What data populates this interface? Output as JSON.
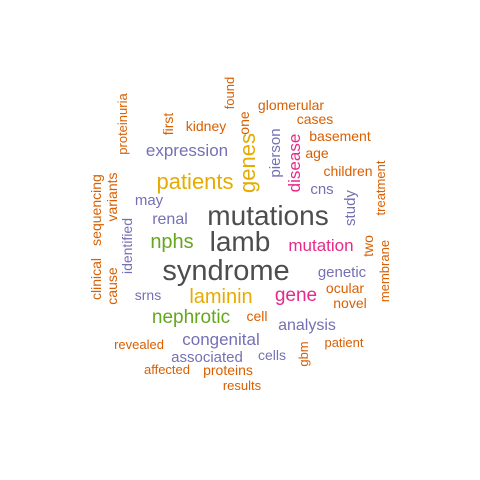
{
  "colors": {
    "grey": "#4d4d4d",
    "orange": "#d95f02",
    "purple": "#7570b3",
    "magenta": "#e7298a",
    "green": "#66a61e",
    "gold": "#e6ab02",
    "background": "#ffffff"
  },
  "words": [
    {
      "text": "syndrome",
      "color": "grey"
    },
    {
      "text": "mutations",
      "color": "grey"
    },
    {
      "text": "lamb",
      "color": "grey"
    },
    {
      "text": "patients",
      "color": "gold"
    },
    {
      "text": "genes",
      "color": "gold"
    },
    {
      "text": "laminin",
      "color": "gold"
    },
    {
      "text": "nphs",
      "color": "green"
    },
    {
      "text": "nephrotic",
      "color": "green"
    },
    {
      "text": "gene",
      "color": "magenta"
    },
    {
      "text": "mutation",
      "color": "magenta"
    },
    {
      "text": "disease",
      "color": "magenta"
    },
    {
      "text": "expression",
      "color": "purple"
    },
    {
      "text": "renal",
      "color": "purple"
    },
    {
      "text": "congenital",
      "color": "purple"
    },
    {
      "text": "analysis",
      "color": "purple"
    },
    {
      "text": "genetic",
      "color": "purple"
    },
    {
      "text": "pierson",
      "color": "purple"
    },
    {
      "text": "may",
      "color": "purple"
    },
    {
      "text": "cns",
      "color": "purple"
    },
    {
      "text": "study",
      "color": "purple"
    },
    {
      "text": "associated",
      "color": "purple"
    },
    {
      "text": "identified",
      "color": "purple"
    },
    {
      "text": "srns",
      "color": "purple"
    },
    {
      "text": "cells",
      "color": "purple"
    },
    {
      "text": "glomerular",
      "color": "orange"
    },
    {
      "text": "kidney",
      "color": "orange"
    },
    {
      "text": "one",
      "color": "orange"
    },
    {
      "text": "found",
      "color": "orange"
    },
    {
      "text": "first",
      "color": "orange"
    },
    {
      "text": "proteinuria",
      "color": "orange"
    },
    {
      "text": "cases",
      "color": "orange"
    },
    {
      "text": "basement",
      "color": "orange"
    },
    {
      "text": "age",
      "color": "orange"
    },
    {
      "text": "children",
      "color": "orange"
    },
    {
      "text": "treatment",
      "color": "orange"
    },
    {
      "text": "variants",
      "color": "orange"
    },
    {
      "text": "sequencing",
      "color": "orange"
    },
    {
      "text": "clinical",
      "color": "orange"
    },
    {
      "text": "cause",
      "color": "orange"
    },
    {
      "text": "two",
      "color": "orange"
    },
    {
      "text": "membrane",
      "color": "orange"
    },
    {
      "text": "ocular",
      "color": "orange"
    },
    {
      "text": "novel",
      "color": "orange"
    },
    {
      "text": "cell",
      "color": "orange"
    },
    {
      "text": "revealed",
      "color": "orange"
    },
    {
      "text": "gbm",
      "color": "orange"
    },
    {
      "text": "patient",
      "color": "orange"
    },
    {
      "text": "affected",
      "color": "orange"
    },
    {
      "text": "proteins",
      "color": "orange"
    },
    {
      "text": "results",
      "color": "orange"
    }
  ]
}
